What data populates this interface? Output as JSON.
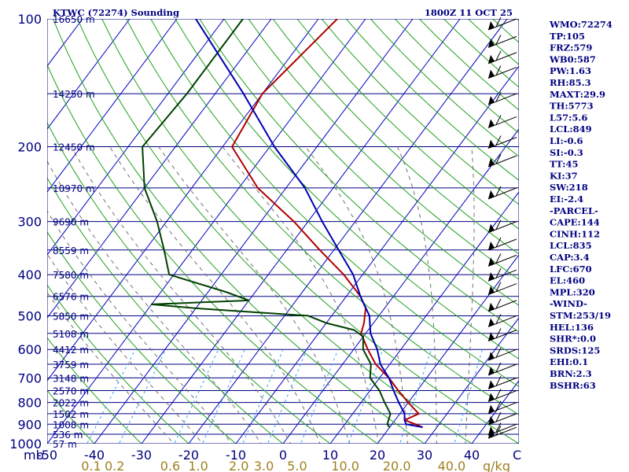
{
  "chart_data": {
    "type": "line",
    "title": "KTWC (72274) Sounding",
    "time": "1800Z 11 OCT 25",
    "y_unit": "mb",
    "x_unit": "C",
    "mixing_unit": "g/kg",
    "y_ticks": [
      "100",
      "200",
      "300",
      "400",
      "500",
      "600",
      "700",
      "800",
      "900",
      "1000"
    ],
    "x_ticks": [
      "-50",
      "-40",
      "-30",
      "-20",
      "-10",
      "0",
      "10",
      "20",
      "30",
      "40"
    ],
    "mixing_ratio_labels": [
      "0.1",
      "0.2",
      "0.6",
      "1.0",
      "2.0",
      "3.0",
      "5.0",
      "10.0",
      "20.0",
      "40.0"
    ],
    "height_labels": [
      {
        "p": 100,
        "text": "16650 m"
      },
      {
        "p": 150,
        "text": "14250 m"
      },
      {
        "p": 200,
        "text": "12450 m"
      },
      {
        "p": 250,
        "text": "10970 m"
      },
      {
        "p": 300,
        "text": "9690 m"
      },
      {
        "p": 350,
        "text": "8559 m"
      },
      {
        "p": 400,
        "text": "7580 m"
      },
      {
        "p": 450,
        "text": "6576 m"
      },
      {
        "p": 500,
        "text": "5850 m"
      },
      {
        "p": 550,
        "text": "5108 m"
      },
      {
        "p": 600,
        "text": "4412 m"
      },
      {
        "p": 650,
        "text": "3759 m"
      },
      {
        "p": 700,
        "text": "3148 m"
      },
      {
        "p": 750,
        "text": "2570 m"
      },
      {
        "p": 800,
        "text": "2022 m"
      },
      {
        "p": 850,
        "text": "1502 m"
      },
      {
        "p": 900,
        "text": "1008 m"
      },
      {
        "p": 950,
        "text": "536 m"
      },
      {
        "p": 1000,
        "text": "57 m"
      }
    ],
    "x_range": [
      -50,
      50
    ],
    "y_range": [
      100,
      1000
    ],
    "y_scale": "log",
    "series": [
      {
        "name": "temperature",
        "color": "#b00000",
        "points": [
          [
            100,
            -56
          ],
          [
            150,
            -60
          ],
          [
            200,
            -58
          ],
          [
            250,
            -46
          ],
          [
            300,
            -33
          ],
          [
            350,
            -23
          ],
          [
            400,
            -14
          ],
          [
            450,
            -7
          ],
          [
            480,
            -4
          ],
          [
            500,
            -3
          ],
          [
            520,
            -2
          ],
          [
            550,
            -1
          ],
          [
            600,
            3
          ],
          [
            650,
            7
          ],
          [
            700,
            12
          ],
          [
            750,
            16
          ],
          [
            800,
            20
          ],
          [
            850,
            24
          ],
          [
            880,
            22
          ],
          [
            900,
            25
          ],
          [
            915,
            27
          ]
        ]
      },
      {
        "name": "dewpoint",
        "color": "#004000",
        "points": [
          [
            100,
            -76
          ],
          [
            150,
            -76
          ],
          [
            200,
            -77
          ],
          [
            250,
            -70
          ],
          [
            300,
            -62
          ],
          [
            350,
            -56
          ],
          [
            400,
            -51
          ],
          [
            440,
            -36
          ],
          [
            460,
            -30
          ],
          [
            470,
            -50
          ],
          [
            480,
            -40
          ],
          [
            500,
            -15
          ],
          [
            520,
            -10
          ],
          [
            540,
            -3
          ],
          [
            560,
            0
          ],
          [
            600,
            2
          ],
          [
            650,
            6
          ],
          [
            700,
            8
          ],
          [
            750,
            12
          ],
          [
            800,
            15
          ],
          [
            850,
            18
          ],
          [
            900,
            19
          ],
          [
            915,
            20
          ]
        ]
      },
      {
        "name": "parcel",
        "color": "#0000b0",
        "points": [
          [
            100,
            -86
          ],
          [
            150,
            -64
          ],
          [
            200,
            -49
          ],
          [
            250,
            -36
          ],
          [
            300,
            -27
          ],
          [
            350,
            -19
          ],
          [
            400,
            -12
          ],
          [
            450,
            -7
          ],
          [
            500,
            -2
          ],
          [
            550,
            1
          ],
          [
            600,
            5
          ],
          [
            650,
            8
          ],
          [
            700,
            12
          ],
          [
            750,
            15
          ],
          [
            800,
            18
          ],
          [
            850,
            21
          ],
          [
            880,
            22
          ],
          [
            900,
            23
          ],
          [
            915,
            27
          ]
        ]
      }
    ],
    "wind_barbs": [
      {
        "p": 100
      },
      {
        "p": 110
      },
      {
        "p": 120
      },
      {
        "p": 130
      },
      {
        "p": 150
      },
      {
        "p": 170
      },
      {
        "p": 190
      },
      {
        "p": 210
      },
      {
        "p": 250
      },
      {
        "p": 300
      },
      {
        "p": 330
      },
      {
        "p": 360
      },
      {
        "p": 390
      },
      {
        "p": 420
      },
      {
        "p": 460
      },
      {
        "p": 500
      },
      {
        "p": 540
      },
      {
        "p": 600
      },
      {
        "p": 650
      },
      {
        "p": 700
      },
      {
        "p": 750
      },
      {
        "p": 800
      },
      {
        "p": 850
      },
      {
        "p": 900
      },
      {
        "p": 915
      }
    ],
    "grid": true
  },
  "stats": [
    "WMO:72274",
    "TP:105",
    "FRZ:579",
    "WB0:587",
    "PW:1.63",
    "RH:85.3",
    "MAXT:29.9",
    "TH:5773",
    "L57:5.6",
    "LCL:849",
    "LI:-0.6",
    "SI:-0.3",
    "TT:45",
    "KI:37",
    "SW:218",
    "EI:-2.4",
    "-PARCEL-",
    "CAPE:144",
    "CINH:112",
    "LCL:835",
    "CAP:3.4",
    "LFC:670",
    "EL:460",
    "MPL:320",
    "-WIND-",
    "STM:253/19",
    "HEL:136",
    "SHR*:0.0",
    "SRDS:125",
    "EHI:0.1",
    "BRN:2.3",
    "BSHR:63"
  ],
  "colors": {
    "isobar": "#000080",
    "isotherm": "#0000c0",
    "dry_adiabat": "#20a020",
    "moist_adiabat": "#707070",
    "mixing_ratio": "#30a0ff",
    "axis_label": "#000080",
    "mixing_label": "#a08020"
  }
}
